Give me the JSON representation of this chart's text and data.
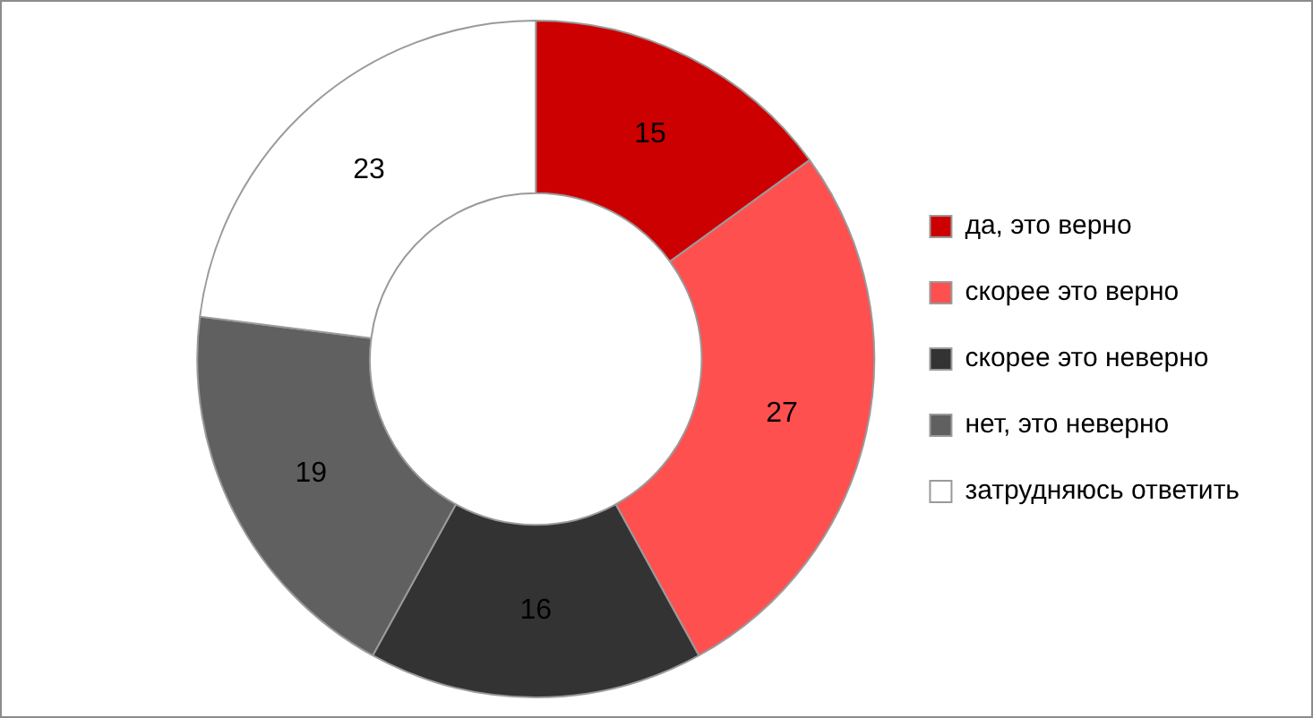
{
  "chart_data": {
    "type": "donut",
    "categories": [
      "да, это верно",
      "скорее это верно",
      "скорее это неверно",
      "нет, это неверно",
      "затрудняюсь ответить"
    ],
    "values": [
      15,
      27,
      16,
      19,
      23
    ],
    "colors": [
      "#cc0000",
      "#ff5050",
      "#333333",
      "#606060",
      "#ffffff"
    ],
    "data_labels": true,
    "legend": "right"
  }
}
